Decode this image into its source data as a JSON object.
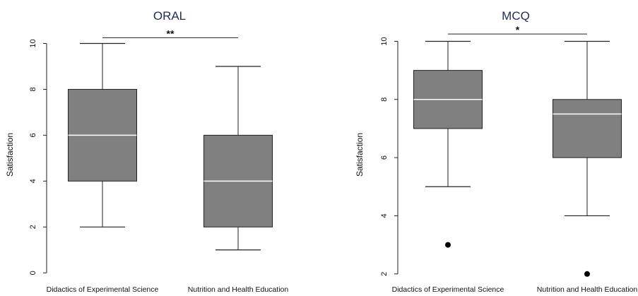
{
  "chart_data": [
    {
      "type": "box",
      "title": "ORAL",
      "xlabel": "",
      "ylabel": "Satisfaction",
      "ylim": [
        -0.3,
        10.6
      ],
      "yticks": [
        "0",
        "2",
        "4",
        "6",
        "8",
        "10"
      ],
      "categories": [
        "Didactics of Experimental Science",
        "Nutrition and Health Education"
      ],
      "boxes": [
        {
          "min": 2,
          "q1": 4,
          "median": 6,
          "q3": 8,
          "max": 10,
          "outliers": []
        },
        {
          "min": 1,
          "q1": 2,
          "median": 4,
          "q3": 6,
          "max": 9,
          "outliers": []
        }
      ],
      "significance": {
        "label": "**",
        "y": 10.25
      },
      "colors": {
        "box": "#808080",
        "median": "#ffffff",
        "title": "#1f2d5a"
      }
    },
    {
      "type": "box",
      "title": "MCQ",
      "xlabel": "",
      "ylabel": "Satisfaction",
      "ylim": [
        1.8,
        10.4
      ],
      "yticks": [
        "2",
        "4",
        "6",
        "8",
        "10"
      ],
      "categories": [
        "Didactics of Experimental Science",
        "Nutrition and Health Education"
      ],
      "boxes": [
        {
          "min": 5,
          "q1": 7,
          "median": 8,
          "q3": 9,
          "max": 10,
          "outliers": [
            3
          ]
        },
        {
          "min": 4,
          "q1": 6,
          "median": 7.5,
          "q3": 8,
          "max": 10,
          "outliers": [
            2
          ]
        }
      ],
      "significance": {
        "label": "*",
        "y": 10.25
      },
      "colors": {
        "box": "#808080",
        "median": "#ffffff",
        "title": "#1f2d5a"
      }
    }
  ]
}
